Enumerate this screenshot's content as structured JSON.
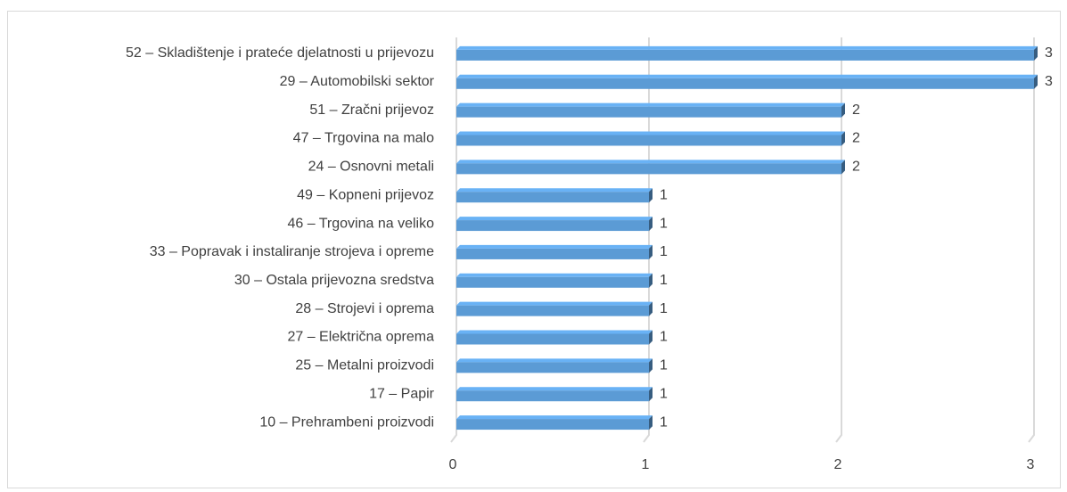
{
  "chart_data": {
    "type": "bar",
    "orientation": "horizontal",
    "categories": [
      "52 – Skladištenje i prateće djelatnosti u prijevozu",
      "29 – Automobilski sektor",
      "51 – Zračni prijevoz",
      "47 – Trgovina na malo",
      "24 – Osnovni metali",
      "49 – Kopneni prijevoz",
      "46 – Trgovina na veliko",
      "33 – Popravak i instaliranje strojeva i opreme",
      "30 – Ostala prijevozna sredstva",
      "28 – Strojevi i oprema",
      "27 – Električna oprema",
      "25 – Metalni proizvodi",
      "17 – Papir",
      "10 – Prehrambeni proizvodi"
    ],
    "values": [
      3,
      3,
      2,
      2,
      2,
      1,
      1,
      1,
      1,
      1,
      1,
      1,
      1,
      1
    ],
    "color": "#5b9bd5",
    "xlim": [
      0,
      3
    ],
    "xticks": [
      0,
      1,
      2,
      3
    ],
    "grid": true
  }
}
